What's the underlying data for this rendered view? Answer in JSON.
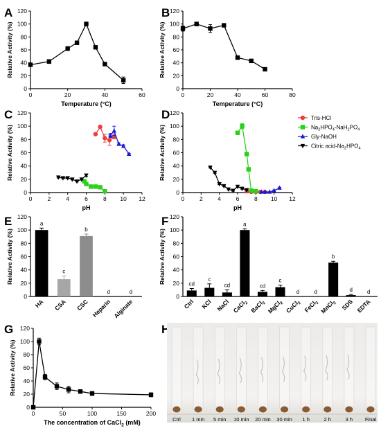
{
  "panels": {
    "A": "A",
    "B": "B",
    "C": "C",
    "D": "D",
    "E": "E",
    "F": "F",
    "G": "G",
    "H": "H"
  },
  "chart_data": [
    {
      "id": "A",
      "type": "line",
      "xlabel": "Temperature (°C)",
      "ylabel": "Relative Activity (%)",
      "xlim": [
        0,
        60
      ],
      "ylim": [
        0,
        120
      ],
      "xticks": [
        "0",
        "20",
        "40",
        "60"
      ],
      "yticks": [
        "0",
        "20",
        "40",
        "60",
        "80",
        "100",
        "120"
      ],
      "series": [
        {
          "color": "#000000",
          "x": [
            0,
            10,
            20,
            25,
            30,
            35,
            40,
            50
          ],
          "y": [
            37,
            42,
            62,
            71,
            100,
            64,
            38,
            13
          ],
          "err": [
            2,
            3,
            3,
            2,
            3,
            2,
            1,
            5
          ]
        }
      ]
    },
    {
      "id": "B",
      "type": "line",
      "xlabel": "Temperature (°C)",
      "ylabel": "Relative Activity (%)",
      "xlim": [
        0,
        80
      ],
      "ylim": [
        0,
        120
      ],
      "xticks": [
        "0",
        "20",
        "40",
        "60",
        "80"
      ],
      "yticks": [
        "0",
        "20",
        "40",
        "60",
        "80",
        "100",
        "120"
      ],
      "series": [
        {
          "color": "#000000",
          "x": [
            0,
            10,
            20,
            30,
            40,
            50,
            60
          ],
          "y": [
            93,
            100,
            93,
            98,
            48,
            43,
            30
          ],
          "err": [
            4,
            3,
            6,
            2,
            1,
            1,
            1
          ]
        }
      ]
    },
    {
      "id": "C",
      "type": "line",
      "xlabel": "pH",
      "ylabel": "Relative Activity (%)",
      "xlim": [
        0,
        12
      ],
      "ylim": [
        0,
        120
      ],
      "xticks": [
        "0",
        "2",
        "4",
        "6",
        "8",
        "10",
        "12"
      ],
      "yticks": [
        "0",
        "20",
        "40",
        "60",
        "80",
        "100",
        "120"
      ],
      "series": [
        {
          "name": "Tris-HCl",
          "color": "#e8403a",
          "marker": "circle",
          "x": [
            7,
            7.5,
            8,
            8.5,
            9
          ],
          "y": [
            88,
            99,
            82,
            79,
            84
          ],
          "err": [
            2,
            2,
            6,
            8,
            3
          ]
        },
        {
          "name": "Na2HPO4-NaH2PO4",
          "color": "#2ad11a",
          "marker": "square",
          "x": [
            5.8,
            6,
            6.5,
            7,
            7.5,
            8
          ],
          "y": [
            17,
            13,
            9,
            9,
            8,
            2
          ],
          "err": [
            1,
            1,
            1,
            1,
            1,
            1
          ]
        },
        {
          "name": "Gly-NaOH",
          "color": "#1a1ad4",
          "marker": "triangle",
          "x": [
            8.6,
            9,
            9.5,
            10,
            10.6
          ],
          "y": [
            86,
            93,
            73,
            70,
            58
          ],
          "err": [
            3,
            7,
            2,
            2,
            1
          ]
        },
        {
          "name": "Citric acid-Na2HPO4",
          "color": "#000000",
          "marker": "triangle-down",
          "x": [
            3,
            3.5,
            4,
            4.5,
            5,
            5.5,
            6
          ],
          "y": [
            23,
            22,
            22,
            20,
            17,
            20,
            26
          ],
          "err": [
            1,
            1,
            1,
            1,
            1,
            1,
            2
          ]
        }
      ]
    },
    {
      "id": "D",
      "type": "line",
      "xlabel": "pH",
      "ylabel": "Relative Activity (%)",
      "xlim": [
        0,
        12
      ],
      "ylim": [
        0,
        120
      ],
      "xticks": [
        "0",
        "2",
        "4",
        "6",
        "8",
        "10",
        "12"
      ],
      "yticks": [
        "0",
        "20",
        "40",
        "60",
        "80",
        "100",
        "120"
      ],
      "legend": {
        "placement": "right",
        "entries": [
          {
            "name": "Tris-HCl",
            "color": "#e8403a",
            "marker": "circle",
            "base": "Tris-HCl",
            "sub1": "",
            "mid": "",
            "sub2": "",
            "tail": ""
          },
          {
            "name": "Na2HPO4-NaH2PO4",
            "color": "#2ad11a",
            "marker": "square",
            "base": "Na",
            "sub1": "2",
            "mid": "HPO",
            "sub2": "4",
            "tail": "-NaH2PO4"
          },
          {
            "name": "Gly-NaOH",
            "color": "#1a1ad4",
            "marker": "triangle",
            "base": "Gly-NaOH",
            "sub1": "",
            "mid": "",
            "sub2": "",
            "tail": ""
          },
          {
            "name": "Citric acid-Na2HPO4",
            "color": "#000000",
            "marker": "triangle-down",
            "base": "Citric acid-Na",
            "sub1": "2",
            "mid": "HPO",
            "sub2": "4",
            "tail": ""
          }
        ]
      },
      "series": [
        {
          "name": "Tris-HCl",
          "color": "#e8403a",
          "marker": "circle",
          "x": [
            7,
            7.5,
            8,
            8.5,
            9
          ],
          "y": [
            2,
            1,
            1,
            1,
            1
          ],
          "err": [
            0,
            0,
            0,
            0,
            0
          ]
        },
        {
          "name": "Na2HPO4-NaH2PO4",
          "color": "#2ad11a",
          "marker": "square",
          "x": [
            6,
            6.5,
            7,
            7.2,
            7.5,
            8
          ],
          "y": [
            90,
            100,
            58,
            35,
            3,
            2
          ],
          "err": [
            2,
            4,
            2,
            2,
            1,
            1
          ]
        },
        {
          "name": "Gly-NaOH",
          "color": "#1a1ad4",
          "marker": "triangle",
          "x": [
            8.6,
            9,
            9.5,
            10,
            10.6
          ],
          "y": [
            1,
            1,
            1,
            3,
            7
          ],
          "err": [
            0,
            0,
            0,
            1,
            1
          ]
        },
        {
          "name": "Citric acid-Na2HPO4",
          "color": "#000000",
          "marker": "triangle-down",
          "x": [
            3,
            3.5,
            4,
            4.5,
            5,
            5.5,
            6,
            6.5,
            7
          ],
          "y": [
            38,
            30,
            13,
            10,
            5,
            3,
            9,
            6,
            4
          ],
          "err": [
            1,
            1,
            1,
            1,
            1,
            1,
            1,
            1,
            1
          ]
        }
      ]
    },
    {
      "id": "E",
      "type": "bar",
      "ylabel": "Relative Activity (%)",
      "ylim": [
        0,
        120
      ],
      "yticks": [
        "0",
        "20",
        "40",
        "60",
        "80",
        "100",
        "120"
      ],
      "categories": [
        "HA",
        "CSA",
        "CSC",
        "Heparin",
        "Alginate"
      ],
      "values": [
        100,
        26,
        91,
        0,
        0
      ],
      "err": [
        3,
        5,
        3,
        0,
        0
      ],
      "letters": [
        "a",
        "c",
        "b",
        "d",
        "d"
      ],
      "colors": [
        "#000000",
        "#a6a6a6",
        "#8c8c8c",
        "#000000",
        "#000000"
      ]
    },
    {
      "id": "F",
      "type": "bar",
      "ylabel": "Relative Activity (%)",
      "ylim": [
        0,
        120
      ],
      "yticks": [
        "0",
        "20",
        "40",
        "60",
        "80",
        "100",
        "120"
      ],
      "categories": [
        "Ctrl",
        "KCl",
        "NaCl",
        "CaCl2",
        "BaCl2",
        "MgCl2",
        "CuCl2",
        "FeCl3",
        "MnCl2",
        "SDS",
        "EDTA"
      ],
      "values": [
        9,
        13,
        6,
        100,
        7,
        14,
        0,
        0,
        51,
        2,
        0
      ],
      "err": [
        3,
        6,
        4,
        2,
        2,
        3,
        0,
        0,
        2,
        1,
        0
      ],
      "letters": [
        "cd",
        "c",
        "cd",
        "a",
        "cd",
        "c",
        "d",
        "d",
        "b",
        "d",
        "d"
      ]
    },
    {
      "id": "G",
      "type": "line",
      "xlabel_base": "The concentration of CaCl",
      "xlabel_sub": "2",
      "xlabel_tail": " (mM)",
      "ylabel": "Relative Activity (%)",
      "xlim": [
        0,
        200
      ],
      "ylim": [
        0,
        120
      ],
      "xticks": [
        "0",
        "50",
        "100",
        "150",
        "200"
      ],
      "yticks": [
        "0",
        "20",
        "40",
        "60",
        "80",
        "100",
        "120"
      ],
      "series": [
        {
          "color": "#000000",
          "x": [
            0,
            10,
            20,
            40,
            60,
            80,
            100,
            200
          ],
          "y": [
            0,
            100,
            46,
            32,
            27,
            24,
            21,
            19
          ],
          "err": [
            0,
            5,
            4,
            5,
            5,
            2,
            3,
            3
          ]
        }
      ]
    }
  ],
  "panel_h": {
    "labels": [
      "Ctrl",
      "1 min",
      "5 min",
      "10 min",
      "20 min",
      "30 min",
      "1 h",
      "2 h",
      "3 h",
      "Final"
    ]
  }
}
